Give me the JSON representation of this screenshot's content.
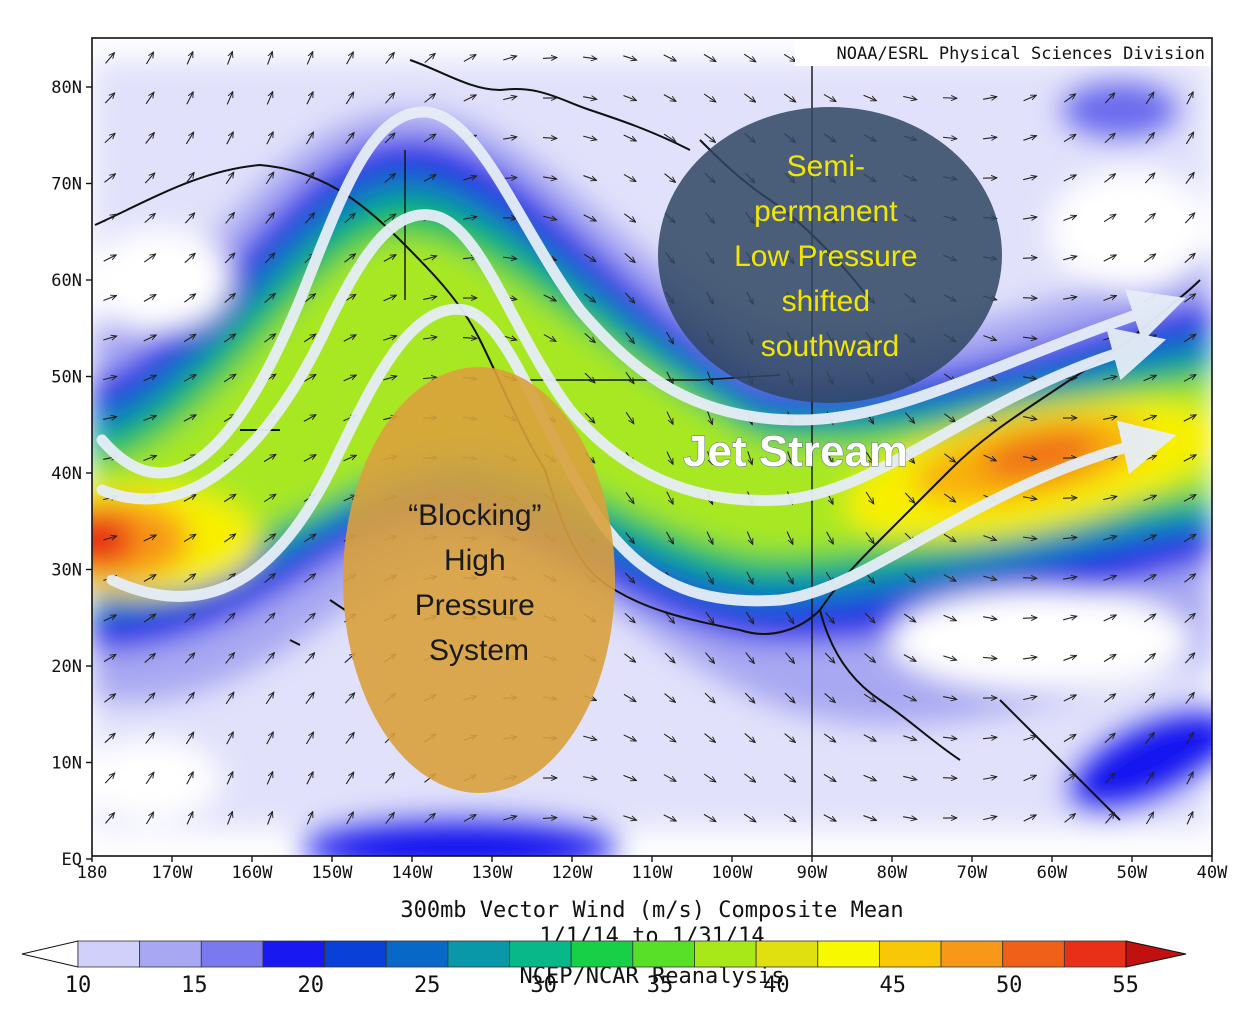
{
  "map": {
    "credit": "NOAA/ESRL Physical Sciences Division",
    "lat_labels": [
      "80N",
      "70N",
      "60N",
      "50N",
      "40N",
      "30N",
      "20N",
      "10N",
      "EQ"
    ],
    "lon_labels": [
      "180",
      "170W",
      "160W",
      "150W",
      "140W",
      "130W",
      "120W",
      "110W",
      "100W",
      "90W",
      "80W",
      "70W",
      "60W",
      "50W",
      "40W"
    ],
    "caption_line1": "300mb Vector Wind (m/s) Composite Mean",
    "caption_line2": "1/1/14 to 1/31/14",
    "caption_line3": "NCEP/NCAR Reanalysis"
  },
  "annotations": {
    "low_pressure": [
      "Semi-",
      "permanent",
      "Low Pressure",
      "shifted",
      "southward"
    ],
    "high_pressure": [
      "“Blocking”",
      "High",
      "Pressure",
      "System"
    ],
    "jet_stream": "Jet Stream"
  },
  "colorbar": {
    "ticks": [
      "10",
      "15",
      "20",
      "25",
      "30",
      "35",
      "40",
      "45",
      "50",
      "55"
    ],
    "colors": [
      "#d0d0fa",
      "#a8a8f2",
      "#7a7aee",
      "#1818f0",
      "#0840d8",
      "#0868c8",
      "#0898a8",
      "#08b888",
      "#18d048",
      "#58e028",
      "#a8e818",
      "#e0e010",
      "#f8f800",
      "#f8c808",
      "#f89818",
      "#f06018",
      "#e83018"
    ]
  },
  "colors": {
    "low_fill": "#2f4661",
    "low_text": "#f2e600",
    "high_fill": "#d9a13c",
    "high_text": "#1a1a1a",
    "arrow": "#e6eef7"
  }
}
